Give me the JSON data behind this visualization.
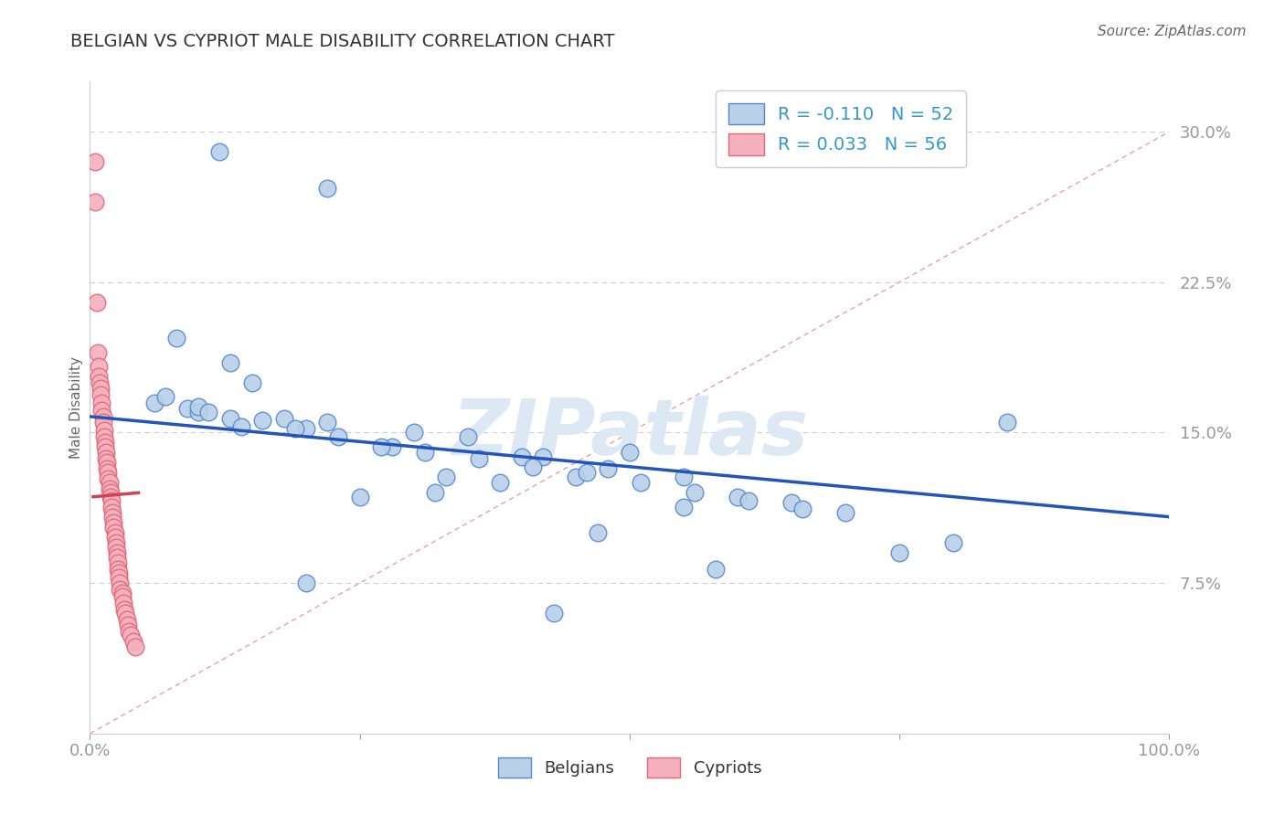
{
  "title": "BELGIAN VS CYPRIOT MALE DISABILITY CORRELATION CHART",
  "source": "Source: ZipAtlas.com",
  "ylabel": "Male Disability",
  "xlim": [
    0.0,
    1.0
  ],
  "ylim": [
    0.0,
    0.325
  ],
  "belgian_R": -0.11,
  "belgian_N": 52,
  "cypriot_R": 0.033,
  "cypriot_N": 56,
  "belgian_color": "#b8d0e8",
  "belgian_edge_color": "#5588cc",
  "cypriot_color": "#f5b0be",
  "cypriot_edge_color": "#e06878",
  "belgian_line_color": "#2255bb",
  "cypriot_line_color": "#cc4455",
  "diagonal_color": "#e8a0aa",
  "title_color": "#333333",
  "axis_tick_color": "#3399cc",
  "source_color": "#666666",
  "grid_color": "#cccccc",
  "watermark_color": "#dde8f5",
  "belgian_x": [
    0.12,
    0.22,
    0.08,
    0.13,
    0.15,
    0.06,
    0.09,
    0.1,
    0.13,
    0.18,
    0.22,
    0.14,
    0.2,
    0.3,
    0.35,
    0.28,
    0.4,
    0.42,
    0.48,
    0.5,
    0.55,
    0.45,
    0.38,
    0.32,
    0.25,
    0.6,
    0.65,
    0.55,
    0.7,
    0.85,
    0.1,
    0.07,
    0.11,
    0.16,
    0.19,
    0.23,
    0.27,
    0.31,
    0.36,
    0.41,
    0.46,
    0.51,
    0.56,
    0.61,
    0.66,
    0.8,
    0.75,
    0.58,
    0.43,
    0.2,
    0.33,
    0.47
  ],
  "belgian_y": [
    0.29,
    0.272,
    0.197,
    0.185,
    0.175,
    0.165,
    0.162,
    0.16,
    0.157,
    0.157,
    0.155,
    0.153,
    0.152,
    0.15,
    0.148,
    0.143,
    0.138,
    0.138,
    0.132,
    0.14,
    0.128,
    0.128,
    0.125,
    0.12,
    0.118,
    0.118,
    0.115,
    0.113,
    0.11,
    0.155,
    0.163,
    0.168,
    0.16,
    0.156,
    0.152,
    0.148,
    0.143,
    0.14,
    0.137,
    0.133,
    0.13,
    0.125,
    0.12,
    0.116,
    0.112,
    0.095,
    0.09,
    0.082,
    0.06,
    0.075,
    0.128,
    0.1
  ],
  "cypriot_x": [
    0.005,
    0.005,
    0.006,
    0.007,
    0.008,
    0.008,
    0.009,
    0.01,
    0.01,
    0.011,
    0.011,
    0.012,
    0.012,
    0.013,
    0.013,
    0.014,
    0.014,
    0.015,
    0.015,
    0.016,
    0.016,
    0.017,
    0.017,
    0.018,
    0.018,
    0.019,
    0.019,
    0.02,
    0.02,
    0.021,
    0.021,
    0.022,
    0.022,
    0.023,
    0.023,
    0.024,
    0.024,
    0.025,
    0.025,
    0.026,
    0.026,
    0.027,
    0.027,
    0.028,
    0.028,
    0.03,
    0.03,
    0.031,
    0.032,
    0.033,
    0.034,
    0.035,
    0.036,
    0.038,
    0.04,
    0.042
  ],
  "cypriot_y": [
    0.285,
    0.265,
    0.215,
    0.19,
    0.183,
    0.178,
    0.175,
    0.172,
    0.169,
    0.165,
    0.161,
    0.158,
    0.155,
    0.151,
    0.148,
    0.145,
    0.143,
    0.14,
    0.137,
    0.135,
    0.132,
    0.13,
    0.127,
    0.125,
    0.122,
    0.12,
    0.118,
    0.116,
    0.113,
    0.11,
    0.108,
    0.105,
    0.103,
    0.1,
    0.098,
    0.095,
    0.093,
    0.09,
    0.088,
    0.085,
    0.082,
    0.08,
    0.078,
    0.075,
    0.072,
    0.07,
    0.068,
    0.065,
    0.062,
    0.06,
    0.057,
    0.054,
    0.051,
    0.049,
    0.046,
    0.043
  ],
  "belgian_line_x": [
    0.0,
    1.0
  ],
  "belgian_line_y": [
    0.158,
    0.108
  ],
  "cypriot_line_x": [
    0.003,
    0.045
  ],
  "cypriot_line_y": [
    0.118,
    0.12
  ]
}
